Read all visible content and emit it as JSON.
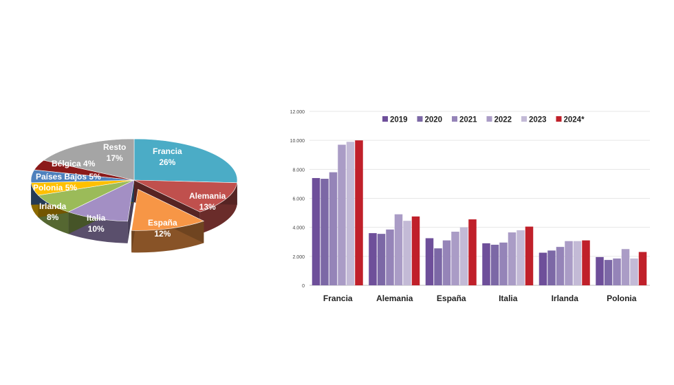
{
  "chart_data": [
    {
      "type": "pie",
      "style": "3d-exploded",
      "slices": [
        {
          "label": "Francia",
          "value": 26,
          "pct": "26%",
          "color": "#4bacc6"
        },
        {
          "label": "Alemania",
          "value": 13,
          "pct": "13%",
          "color": "#c0504d"
        },
        {
          "label": "España",
          "value": 12,
          "pct": "12%",
          "color": "#f79646",
          "exploded": true
        },
        {
          "label": "Italia",
          "value": 10,
          "pct": "10%",
          "color": "#a38fc4"
        },
        {
          "label": "Irlanda",
          "value": 8,
          "pct": "8%",
          "color": "#9bbb59"
        },
        {
          "label": "Polonia",
          "value": 5,
          "pct": "5%",
          "color": "#ffc000"
        },
        {
          "label": "Países Bajos",
          "value": 5,
          "pct": "5%",
          "color": "#4f81bd"
        },
        {
          "label": "Bélgica",
          "value": 4,
          "pct": "4%",
          "color": "#8b1a1a"
        },
        {
          "label": "Resto",
          "value": 17,
          "pct": "17%",
          "color": "#a5a5a5"
        }
      ]
    },
    {
      "type": "bar",
      "categories": [
        "Francia",
        "Alemania",
        "España",
        "Italia",
        "Irlanda",
        "Polonia"
      ],
      "series": [
        {
          "name": "2019",
          "color": "#6e4f9a",
          "values": [
            7400,
            3600,
            3250,
            2900,
            2250,
            1950
          ]
        },
        {
          "name": "2020",
          "color": "#7c68a6",
          "values": [
            7350,
            3550,
            2550,
            2800,
            2400,
            1750
          ]
        },
        {
          "name": "2021",
          "color": "#9584b8",
          "values": [
            7800,
            3850,
            3100,
            2950,
            2650,
            1850
          ]
        },
        {
          "name": "2022",
          "color": "#aa9cc6",
          "values": [
            9700,
            4900,
            3700,
            3650,
            3050,
            2500
          ]
        },
        {
          "name": "2023",
          "color": "#c3bad6",
          "values": [
            9900,
            4450,
            4000,
            3800,
            3050,
            1850
          ]
        },
        {
          "name": "2024*",
          "color": "#c0202a",
          "values": [
            10000,
            4750,
            4550,
            4050,
            3100,
            2300
          ]
        }
      ],
      "yticks": [
        "0",
        "2.000",
        "4.000",
        "6.000",
        "8.000",
        "10.000",
        "12.000"
      ],
      "ylim": [
        0,
        12000
      ],
      "grid": true,
      "legend": "top"
    }
  ]
}
